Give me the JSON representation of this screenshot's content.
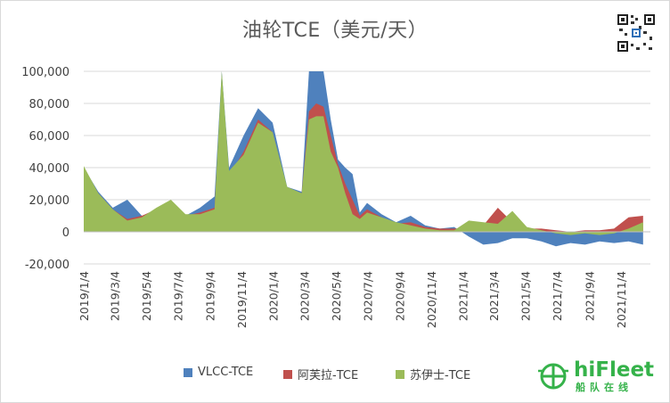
{
  "chart_data": {
    "type": "area",
    "title": "油轮TCE（美元/天）",
    "ylim": [
      -20000,
      100000
    ],
    "yticks": [
      "100,000",
      "80,000",
      "60,000",
      "40,000",
      "20,000",
      "0",
      "-20,000"
    ],
    "ytick_values": [
      100000,
      80000,
      60000,
      40000,
      20000,
      0,
      -20000
    ],
    "xticks": [
      "2019/1/4",
      "2019/3/4",
      "2019/5/4",
      "2019/7/4",
      "2019/9/4",
      "2019/11/4",
      "2020/1/4",
      "2020/3/4",
      "2020/5/4",
      "2020/7/4",
      "2020/9/4",
      "2020/11/4",
      "2021/1/4",
      "2021/3/4",
      "2021/5/4",
      "2021/7/4",
      "2021/9/4",
      "2021/11/4"
    ],
    "grid": true,
    "legend": "bottom",
    "x": [
      "2019/1/4",
      "2019/2/1",
      "2019/3/1",
      "2019/3/29",
      "2019/4/26",
      "2019/5/24",
      "2019/6/21",
      "2019/7/19",
      "2019/8/16",
      "2019/9/13",
      "2019/9/27",
      "2019/10/11",
      "2019/11/8",
      "2019/12/6",
      "2020/1/3",
      "2020/1/31",
      "2020/2/28",
      "2020/3/13",
      "2020/3/27",
      "2020/4/10",
      "2020/4/24",
      "2020/5/8",
      "2020/5/22",
      "2020/6/5",
      "2020/6/19",
      "2020/7/3",
      "2020/7/31",
      "2020/8/28",
      "2020/9/25",
      "2020/10/23",
      "2020/11/20",
      "2020/12/18",
      "2021/1/15",
      "2021/2/12",
      "2021/3/12",
      "2021/4/9",
      "2021/5/7",
      "2021/6/4",
      "2021/7/2",
      "2021/7/30",
      "2021/8/27",
      "2021/9/24",
      "2021/10/22",
      "2021/11/19",
      "2021/12/17"
    ],
    "series": [
      {
        "name": "VLCC-TCE",
        "color": "#4f81bd",
        "values": [
          40000,
          25000,
          15000,
          20000,
          10000,
          12000,
          18000,
          10000,
          15000,
          22000,
          100000,
          40000,
          60000,
          77000,
          68000,
          28000,
          25000,
          100000,
          100000,
          100000,
          70000,
          45000,
          40000,
          36000,
          12000,
          18000,
          11000,
          6000,
          10000,
          4000,
          2000,
          3000,
          -3000,
          -8000,
          -7000,
          -4000,
          -4000,
          -6000,
          -9000,
          -7000,
          -8000,
          -6000,
          -7000,
          -6000,
          -8000
        ]
      },
      {
        "name": "阿芙拉-TCE",
        "color": "#c0504d",
        "values": [
          40000,
          24000,
          14000,
          8000,
          10000,
          14000,
          15000,
          10000,
          12000,
          15000,
          95000,
          35000,
          50000,
          70000,
          62000,
          27000,
          24000,
          75000,
          80000,
          78000,
          60000,
          42000,
          30000,
          20000,
          10000,
          14000,
          9000,
          5000,
          6000,
          3000,
          2000,
          2000,
          2000,
          4000,
          15000,
          6000,
          2000,
          2000,
          1000,
          0,
          1000,
          1000,
          2000,
          9000,
          10000
        ]
      },
      {
        "name": "苏伊士-TCE",
        "color": "#9bbb59",
        "values": [
          41000,
          24000,
          14000,
          7000,
          9000,
          15000,
          20000,
          11000,
          11000,
          14000,
          100000,
          38000,
          48000,
          68000,
          62000,
          28000,
          24000,
          70000,
          72000,
          72000,
          50000,
          40000,
          24000,
          11000,
          8000,
          12000,
          9000,
          6000,
          4000,
          2000,
          1000,
          1000,
          7000,
          6000,
          5000,
          13000,
          3000,
          1000,
          -1000,
          -2000,
          -1000,
          -2000,
          -1000,
          2000,
          6000
        ]
      }
    ]
  },
  "legend_items": [
    {
      "label": "VLCC-TCE",
      "color": "#4f81bd"
    },
    {
      "label": "阿芙拉-TCE",
      "color": "#c0504d"
    },
    {
      "label": "苏伊士-TCE",
      "color": "#9bbb59"
    }
  ],
  "logo": {
    "brand": "hiFleet",
    "sub": "船队在线"
  }
}
